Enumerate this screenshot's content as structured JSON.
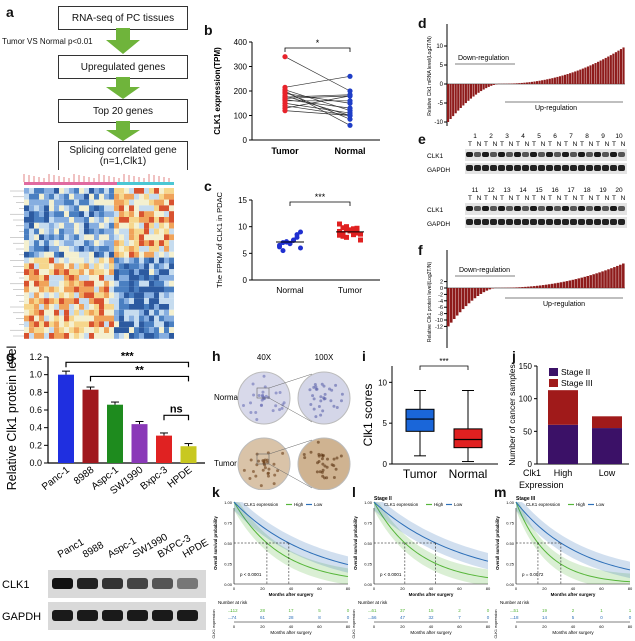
{
  "panels": {
    "a": {
      "letter": "a",
      "flow": [
        "RNA-seq of PC tissues",
        "Upregulated genes",
        "Top 20 genes",
        "Splicing correlated gene (n=1,Clk1)"
      ],
      "side_note": "Tumor VS Normal  p<0.01"
    },
    "b": {
      "letter": "b"
    },
    "c": {
      "letter": "c"
    },
    "d": {
      "letter": "d",
      "down": "Down-regulation",
      "up": "Up-regulation"
    },
    "e": {
      "letter": "e",
      "rows": [
        "CLK1",
        "GAPDH"
      ],
      "lanes_top_left": [
        "1",
        "2",
        "3",
        "4",
        "5"
      ],
      "lanes_top_right": [
        "6",
        "7",
        "8",
        "9",
        "10"
      ],
      "lanes_bottom_left": [
        "11",
        "12",
        "13",
        "14",
        "15"
      ],
      "lanes_bottom_right": [
        "16",
        "17",
        "18",
        "19",
        "20"
      ],
      "tn": [
        "T",
        "N"
      ]
    },
    "f": {
      "letter": "f",
      "down": "Down-regulation",
      "up": "Up-regulation"
    },
    "g": {
      "letter": "g",
      "blot_labels": [
        "Panc1",
        "8988",
        "Aspc-1",
        "SW1990",
        "BXPC-3",
        "HPDE"
      ],
      "blot_rows": [
        "CLK1",
        "GAPDH"
      ]
    },
    "h": {
      "letter": "h",
      "col1": "40X",
      "col2": "100X",
      "row1": "Normal",
      "row2": "Tumor"
    },
    "i": {
      "letter": "i"
    },
    "j": {
      "letter": "j"
    },
    "k": {
      "letter": "k",
      "legend_title": "CLK1 expression",
      "high": "High",
      "low": "Low",
      "pvalue": "p < 0.0001",
      "ylabel": "Overall survival probability",
      "xlabel": "Months after surgery",
      "risk_title": "Number at risk",
      "risk_label": "CLK1 expression",
      "risk_high": [
        "112",
        "28",
        "17",
        "5",
        "0"
      ],
      "risk_low": [
        "74",
        "61",
        "28",
        "8",
        "0"
      ],
      "xticks": [
        "0",
        "20",
        "40",
        "60",
        "80"
      ]
    },
    "l": {
      "letter": "l",
      "subtitle": "Stage II",
      "legend_title": "CLK1 expression",
      "high": "High",
      "low": "Low",
      "pvalue": "p < 0.0001",
      "ylabel": "Overall survival probability",
      "xlabel": "Months after surgery",
      "risk_title": "Number at risk",
      "risk_label": "CLK1 expression",
      "risk_high": [
        "61",
        "37",
        "15",
        "2",
        "0"
      ],
      "risk_low": [
        "56",
        "47",
        "32",
        "7",
        "0"
      ],
      "xticks": [
        "0",
        "20",
        "40",
        "60",
        "80"
      ]
    },
    "m": {
      "letter": "m",
      "subtitle": "Stage III",
      "legend_title": "CLK1 expression",
      "high": "High",
      "low": "Low",
      "pvalue": "p = 0.0072",
      "ylabel": "Overall survival probability",
      "xlabel": "Months after surgery",
      "risk_title": "Number at risk",
      "risk_label": "CLK1 expression",
      "risk_high": [
        "51",
        "19",
        "2",
        "1",
        "1"
      ],
      "risk_low": [
        "18",
        "14",
        "5",
        "0",
        "0"
      ],
      "xticks": [
        "0",
        "20",
        "40",
        "60",
        "80"
      ]
    }
  },
  "chart_data": [
    {
      "id": "b",
      "type": "scatter",
      "title": "",
      "ylabel": "CLK1 expression(TPM)",
      "categories": [
        "Tumor",
        "Normal"
      ],
      "ylim": [
        0,
        400
      ],
      "yticks": [
        0,
        100,
        200,
        300,
        400
      ],
      "significance": "*",
      "paired": [
        [
          340,
          200
        ],
        [
          215,
          260
        ],
        [
          205,
          120
        ],
        [
          200,
          60
        ],
        [
          195,
          85
        ],
        [
          190,
          150
        ],
        [
          180,
          100
        ],
        [
          175,
          185
        ],
        [
          170,
          180
        ],
        [
          165,
          130
        ],
        [
          160,
          160
        ],
        [
          150,
          110
        ],
        [
          140,
          100
        ],
        [
          130,
          180
        ],
        [
          120,
          100
        ]
      ],
      "colors": {
        "tumor": "#e8232b",
        "normal": "#1f3ec7"
      }
    },
    {
      "id": "c",
      "type": "scatter",
      "title": "",
      "ylabel": "The FPKM of CLK1 in PDAC",
      "categories": [
        "Normal",
        "Tumor"
      ],
      "ylim": [
        0,
        15
      ],
      "yticks": [
        0,
        5,
        10,
        15
      ],
      "significance": "***",
      "series": [
        {
          "name": "Normal",
          "values": [
            6.2,
            7.0,
            7.2,
            6.8,
            7.5,
            8.5,
            9.0,
            6.5,
            5.5,
            7.1,
            6.9,
            7.4,
            8.0,
            6.0
          ],
          "color": "#1f2fd0"
        },
        {
          "name": "Tumor",
          "values": [
            10.5,
            9.8,
            9.5,
            9.2,
            9.0,
            8.8,
            8.6,
            8.4,
            8.2,
            8.0,
            9.4,
            9.6,
            8.9,
            7.5,
            9.1,
            8.7,
            10.0,
            9.3,
            8.5,
            9.7
          ],
          "color": "#e02020"
        }
      ]
    },
    {
      "id": "g",
      "type": "bar",
      "title": "",
      "ylabel": "Relative Clk1 protein level",
      "categories": [
        "Panc-1",
        "8988",
        "Aspc-1",
        "SW1990",
        "Bxpc-3",
        "HPDE"
      ],
      "values": [
        1.0,
        0.83,
        0.66,
        0.44,
        0.31,
        0.19
      ],
      "errors": [
        0.04,
        0.03,
        0.03,
        0.03,
        0.03,
        0.03
      ],
      "colors": [
        "#1f2fe0",
        "#a0181e",
        "#1e8b1e",
        "#8a39b8",
        "#e02222",
        "#c8c820"
      ],
      "ylim": [
        0,
        1.2
      ],
      "yticks": [
        0,
        0.2,
        0.4,
        0.6,
        0.8,
        1.0,
        1.2
      ],
      "brackets": [
        {
          "from": 0,
          "to": 5,
          "label": "***"
        },
        {
          "from": 1,
          "to": 5,
          "label": "**"
        },
        {
          "from": 4,
          "to": 5,
          "label": "ns"
        }
      ]
    },
    {
      "id": "i",
      "type": "box",
      "title": "",
      "ylabel": "Clk1 scores",
      "categories": [
        "Tumor",
        "Normal"
      ],
      "ylim": [
        0,
        12
      ],
      "yticks": [
        0,
        5,
        10
      ],
      "significance": "***",
      "boxes": [
        {
          "name": "Tumor",
          "min": 1,
          "q1": 4,
          "median": 5.5,
          "q3": 6.7,
          "max": 9,
          "color": "#1a66d9"
        },
        {
          "name": "Normal",
          "min": 0.3,
          "q1": 2,
          "median": 3,
          "q3": 4.3,
          "max": 9,
          "color": "#e02020"
        }
      ]
    },
    {
      "id": "j",
      "type": "bar",
      "stacked": true,
      "title": "",
      "ylabel": "Number of cancer samples",
      "xlabel": "Clk1 Expression",
      "categories": [
        "High",
        "Low"
      ],
      "series": [
        {
          "name": "Stage II",
          "values": [
            60,
            55
          ],
          "color": "#3b1167"
        },
        {
          "name": "Stage III",
          "values": [
            53,
            18
          ],
          "color": "#a01a1a"
        }
      ],
      "ylim": [
        0,
        150
      ],
      "yticks": [
        0,
        50,
        100,
        150
      ]
    }
  ]
}
